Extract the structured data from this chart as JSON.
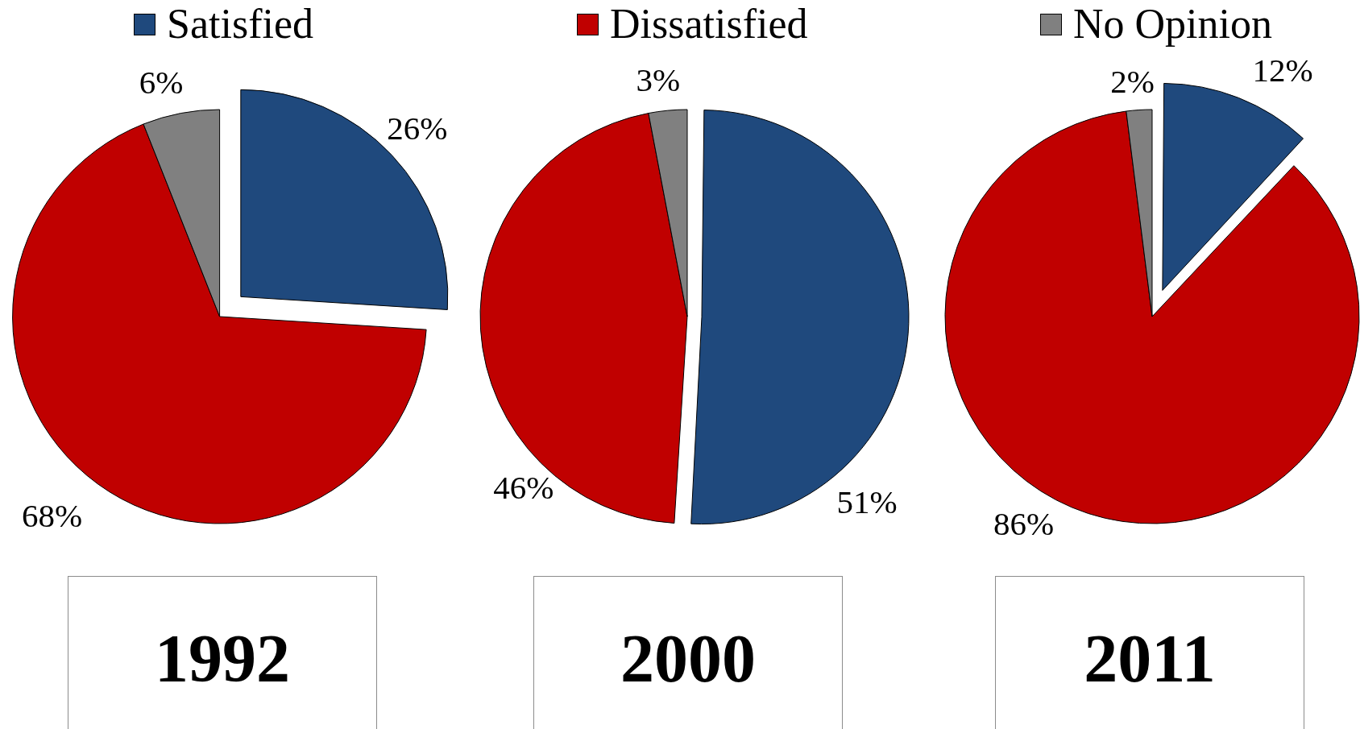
{
  "chart_data": [
    {
      "type": "pie",
      "title": "1992",
      "categories": [
        "Satisfied",
        "Dissatisfied",
        "No Opinion"
      ],
      "values": [
        26,
        68,
        6
      ],
      "colors": [
        "#1f497d",
        "#c00000",
        "#808080"
      ],
      "value_labels": [
        "26%",
        "68%",
        "6%"
      ],
      "legend": "top"
    },
    {
      "type": "pie",
      "title": "2000",
      "categories": [
        null,
        null,
        null
      ],
      "values": [
        51,
        46,
        3
      ],
      "colors": [
        "#1f497d",
        "#c00000",
        "#808080"
      ],
      "value_labels": [
        "51%",
        "46%",
        "3%"
      ]
    },
    {
      "type": "pie",
      "title": "2011",
      "categories": [
        null,
        null,
        null
      ],
      "values": [
        12,
        86,
        2
      ],
      "colors": [
        "#1f497d",
        "#c00000",
        "#808080"
      ],
      "value_labels": [
        "12%",
        "86%",
        "2%"
      ]
    }
  ]
}
